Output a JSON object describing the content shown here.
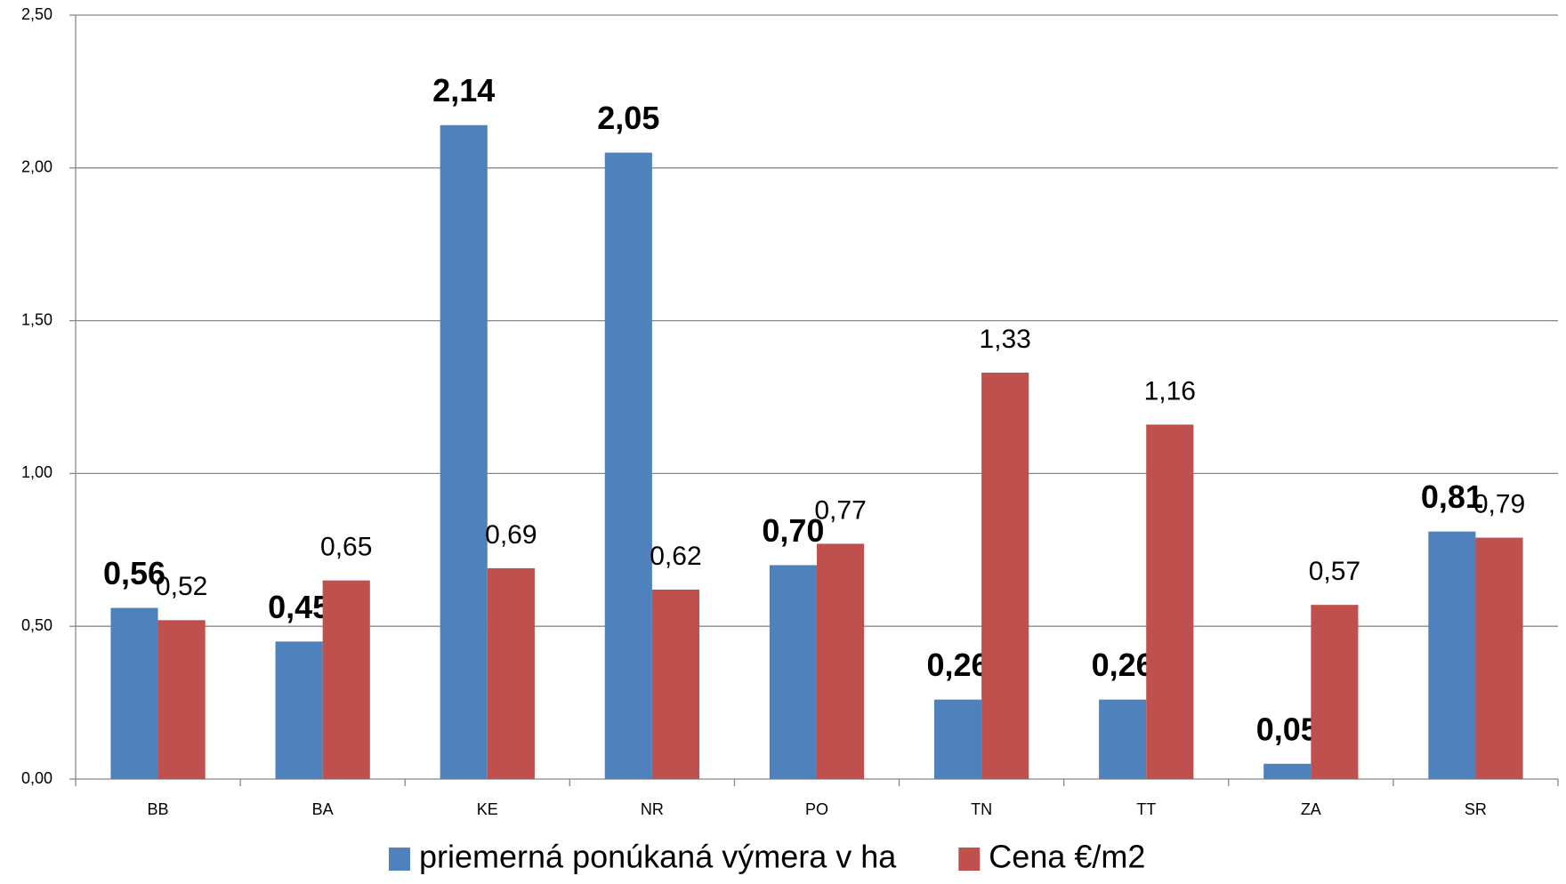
{
  "chart_data": {
    "type": "bar",
    "categories": [
      "BB",
      "BA",
      "KE",
      "NR",
      "PO",
      "TN",
      "TT",
      "ZA",
      "SR"
    ],
    "series": [
      {
        "name": "priemerná ponúkaná výmera v ha",
        "color": "#4f81bd",
        "values": [
          0.56,
          0.45,
          2.14,
          2.05,
          0.7,
          0.26,
          0.26,
          0.05,
          0.81
        ],
        "value_labels": [
          "0,56",
          "0,45",
          "2,14",
          "2,05",
          "0,70",
          "0,26",
          "0,26",
          "0,05",
          "0,81"
        ]
      },
      {
        "name": "Cena €/m2",
        "color": "#c0504d",
        "values": [
          0.52,
          0.65,
          0.69,
          0.62,
          0.77,
          1.33,
          1.16,
          0.57,
          0.79
        ],
        "value_labels": [
          "0,52",
          "0,65",
          "0,69",
          "0,62",
          "0,77",
          "1,33",
          "1,16",
          "0,57",
          "0,79"
        ]
      }
    ],
    "ylim": [
      0,
      2.5
    ],
    "yticks": [
      {
        "value": 0,
        "label": "0,00"
      },
      {
        "value": 0.5,
        "label": "0,50"
      },
      {
        "value": 1,
        "label": "1,00"
      },
      {
        "value": 1.5,
        "label": "1,50"
      },
      {
        "value": 2,
        "label": "2,00"
      },
      {
        "value": 2.5,
        "label": "2,50"
      }
    ],
    "grid": true,
    "legend": "bottom"
  }
}
